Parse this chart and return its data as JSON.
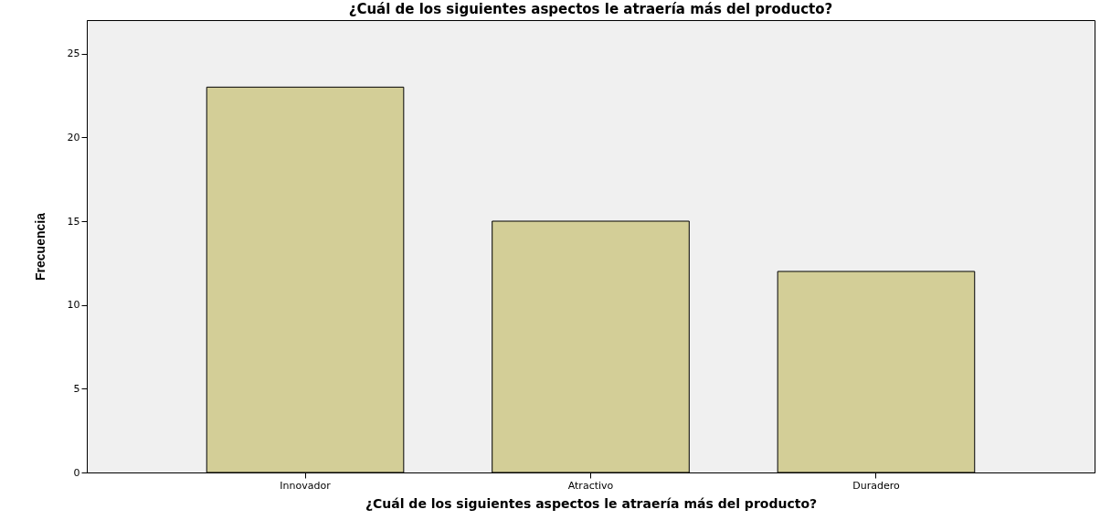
{
  "chart_data": {
    "type": "bar",
    "title": "¿Cuál de los siguientes aspectos le atraería más del producto?",
    "xlabel": "¿Cuál de los siguientes aspectos le atraería más del producto?",
    "ylabel": "Frecuencia",
    "categories": [
      "Innovador",
      "Atractivo",
      "Duradero"
    ],
    "values": [
      23,
      15,
      12
    ],
    "color": "#d3ce97",
    "ylim": [
      0,
      27
    ],
    "yticks": [
      0,
      5,
      10,
      15,
      20,
      25
    ],
    "grid": false
  }
}
